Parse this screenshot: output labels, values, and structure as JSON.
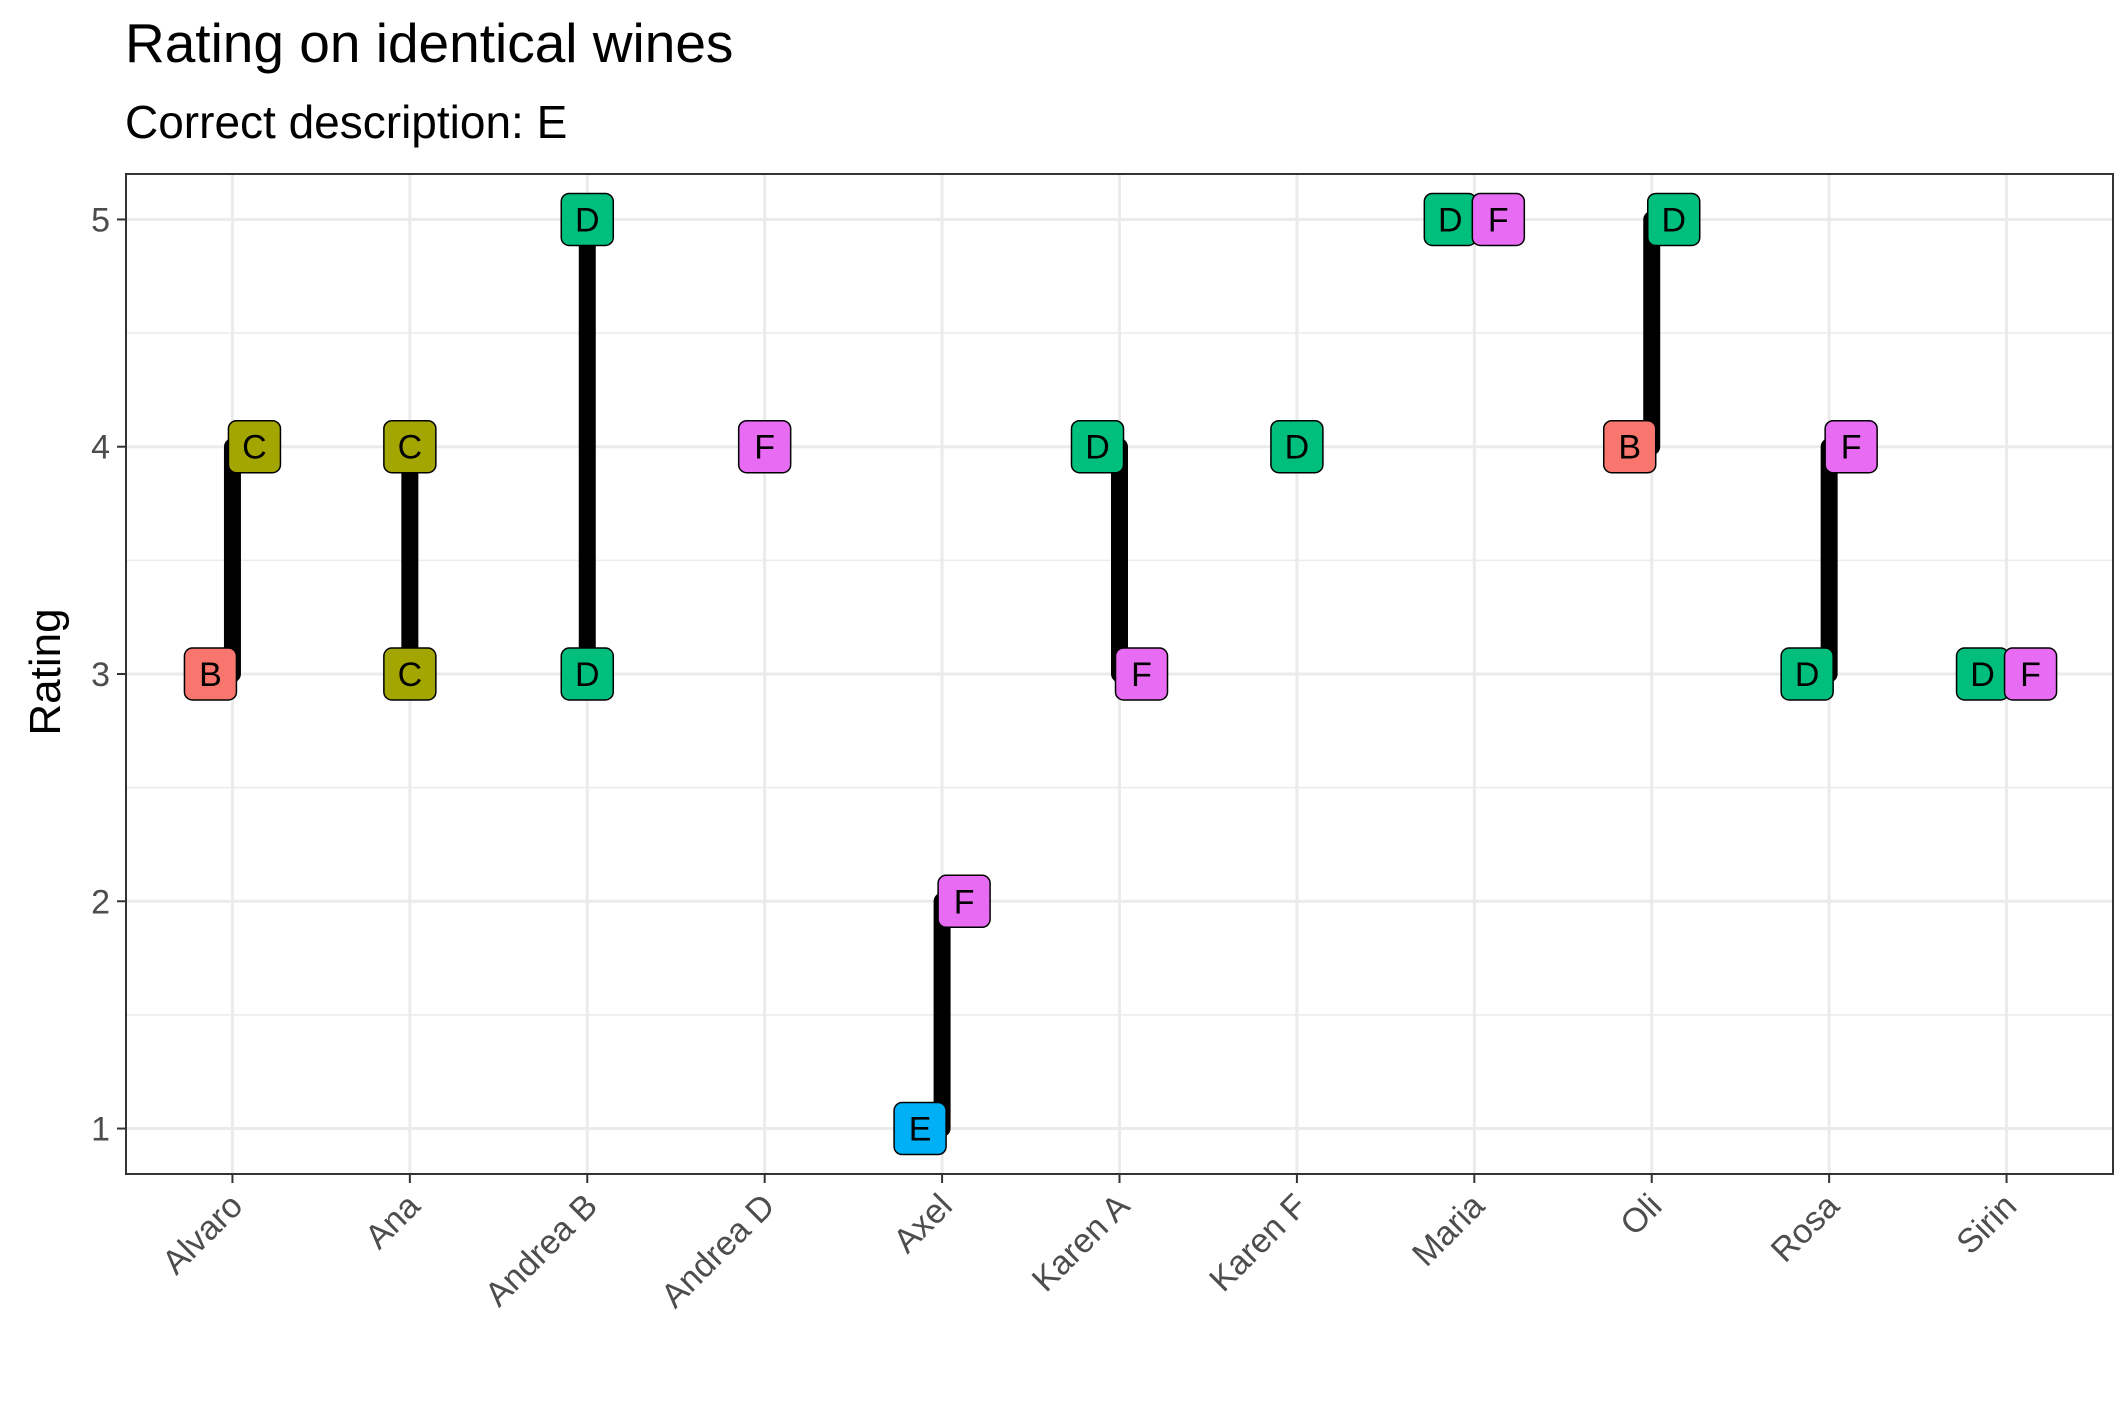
{
  "chart_data": {
    "type": "dumbbell",
    "title": "Rating on identical wines",
    "subtitle": "Correct description: E",
    "xlabel": "",
    "ylabel": "Rating",
    "ylim": [
      0.8,
      5.2
    ],
    "yticks": [
      1,
      2,
      3,
      4,
      5
    ],
    "grid": true,
    "legend": "none",
    "categories": [
      "Alvaro",
      "Ana",
      "Andrea B",
      "Andrea D",
      "Axel",
      "Karen A",
      "Karen F",
      "Maria",
      "Oli",
      "Rosa",
      "Sirin"
    ],
    "description_colors": {
      "B": "#F8766D",
      "C": "#A3A500",
      "D": "#00BF7D",
      "E": "#00B0F6",
      "F": "#E76BF3"
    },
    "line_color": "#000000",
    "ratings": [
      {
        "person": "Alvaro",
        "first": {
          "label": "B",
          "rating": 3
        },
        "second": {
          "label": "C",
          "rating": 4
        }
      },
      {
        "person": "Ana",
        "first": {
          "label": "C",
          "rating": 4
        },
        "second": {
          "label": "C",
          "rating": 3
        }
      },
      {
        "person": "Andrea B",
        "first": {
          "label": "D",
          "rating": 5
        },
        "second": {
          "label": "D",
          "rating": 3
        }
      },
      {
        "person": "Andrea D",
        "first": {
          "label": "F",
          "rating": 4
        },
        "second": null
      },
      {
        "person": "Axel",
        "first": {
          "label": "E",
          "rating": 1
        },
        "second": {
          "label": "F",
          "rating": 2
        }
      },
      {
        "person": "Karen A",
        "first": {
          "label": "D",
          "rating": 4
        },
        "second": {
          "label": "F",
          "rating": 3
        }
      },
      {
        "person": "Karen F",
        "first": {
          "label": "D",
          "rating": 4
        },
        "second": null
      },
      {
        "person": "Maria",
        "first": {
          "label": "D",
          "rating": 5
        },
        "second": {
          "label": "F",
          "rating": 5
        }
      },
      {
        "person": "Oli",
        "first": {
          "label": "B",
          "rating": 4
        },
        "second": {
          "label": "D",
          "rating": 5
        }
      },
      {
        "person": "Rosa",
        "first": {
          "label": "D",
          "rating": 3
        },
        "second": {
          "label": "F",
          "rating": 4
        }
      },
      {
        "person": "Sirin",
        "first": {
          "label": "D",
          "rating": 3
        },
        "second": {
          "label": "F",
          "rating": 3
        }
      }
    ]
  }
}
